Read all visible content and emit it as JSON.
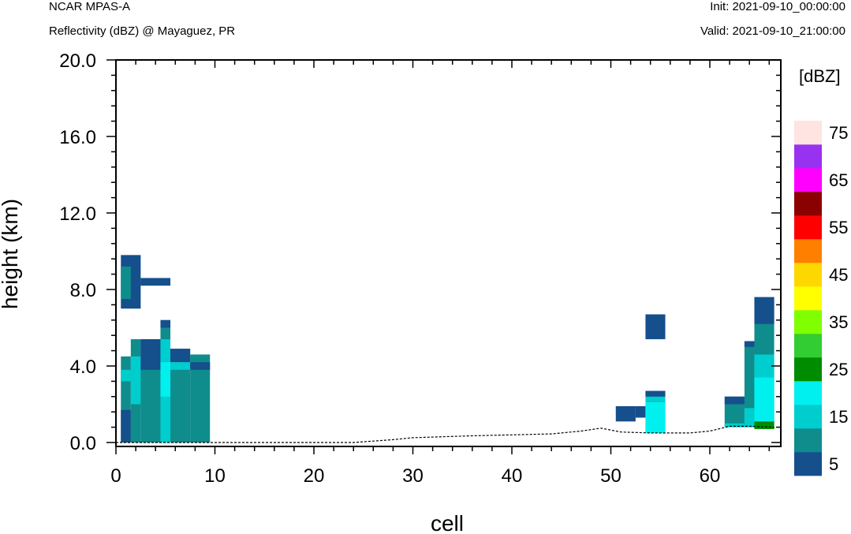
{
  "header": {
    "model": "NCAR MPAS-A",
    "field": "Reflectivity (dBZ) @ Mayaguez, PR",
    "init": "Init: 2021-09-10_00:00:00",
    "valid": "Valid: 2021-09-10_21:00:00"
  },
  "chart_data": {
    "type": "heatmap",
    "xlabel": "cell",
    "ylabel": "height (km)",
    "xlim": [
      0,
      66.5
    ],
    "ylim": [
      -0.2,
      20
    ],
    "x_ticks": [
      "0",
      "10",
      "20",
      "30",
      "40",
      "50",
      "60"
    ],
    "x_tick_values": [
      0,
      10,
      20,
      30,
      40,
      50,
      60
    ],
    "y_ticks": [
      "0.0",
      "4.0",
      "8.0",
      "12.0",
      "16.0",
      "20.0"
    ],
    "y_tick_values": [
      0,
      4,
      8,
      12,
      16,
      20
    ],
    "colorbar": {
      "title": "[dBZ]",
      "labels": [
        "5",
        "15",
        "25",
        "35",
        "45",
        "55",
        "65",
        "75"
      ],
      "label_values": [
        5,
        15,
        25,
        35,
        45,
        55,
        65,
        75
      ],
      "levels": [
        {
          "value": 5,
          "color": "#154f8c"
        },
        {
          "value": 10,
          "color": "#0f8c8c"
        },
        {
          "value": 15,
          "color": "#00cdcd"
        },
        {
          "value": 20,
          "color": "#00f0f0"
        },
        {
          "value": 25,
          "color": "#008c00"
        },
        {
          "value": 30,
          "color": "#32cd32"
        },
        {
          "value": 35,
          "color": "#80ff00"
        },
        {
          "value": 40,
          "color": "#ffff00"
        },
        {
          "value": 45,
          "color": "#ffd700"
        },
        {
          "value": 50,
          "color": "#ff7f00"
        },
        {
          "value": 55,
          "color": "#ff0000"
        },
        {
          "value": 60,
          "color": "#8b0000"
        },
        {
          "value": 65,
          "color": "#ff00ff"
        },
        {
          "value": 70,
          "color": "#9932f0"
        },
        {
          "value": 75,
          "color": "#ffe4e1"
        }
      ]
    },
    "cells": [
      {
        "x0": 0.5,
        "x1": 2.5,
        "y0": 7.0,
        "y1": 9.8,
        "dbz": 5
      },
      {
        "x0": 0.5,
        "x1": 1.5,
        "y0": 7.5,
        "y1": 9.2,
        "dbz": 10
      },
      {
        "x0": 2.5,
        "x1": 5.5,
        "y0": 8.2,
        "y1": 8.6,
        "dbz": 5
      },
      {
        "x0": 0.5,
        "x1": 1.5,
        "y0": 0.0,
        "y1": 4.5,
        "dbz": 10
      },
      {
        "x0": 0.5,
        "x1": 1.5,
        "y0": 3.2,
        "y1": 3.8,
        "dbz": 15
      },
      {
        "x0": 0.5,
        "x1": 1.5,
        "y0": 0.0,
        "y1": 1.7,
        "dbz": 5
      },
      {
        "x0": 1.5,
        "x1": 2.5,
        "y0": 0.0,
        "y1": 5.4,
        "dbz": 10
      },
      {
        "x0": 1.5,
        "x1": 2.5,
        "y0": 2.0,
        "y1": 4.5,
        "dbz": 15
      },
      {
        "x0": 2.5,
        "x1": 4.5,
        "y0": 0.0,
        "y1": 5.4,
        "dbz": 10
      },
      {
        "x0": 2.5,
        "x1": 4.5,
        "y0": 3.8,
        "y1": 5.4,
        "dbz": 5
      },
      {
        "x0": 4.5,
        "x1": 5.5,
        "y0": 0.0,
        "y1": 6.4,
        "dbz": 10
      },
      {
        "x0": 4.5,
        "x1": 5.5,
        "y0": 0.0,
        "y1": 5.4,
        "dbz": 15
      },
      {
        "x0": 4.5,
        "x1": 5.5,
        "y0": 2.4,
        "y1": 4.2,
        "dbz": 20
      },
      {
        "x0": 4.5,
        "x1": 5.5,
        "y0": 6.0,
        "y1": 6.4,
        "dbz": 5
      },
      {
        "x0": 5.5,
        "x1": 7.5,
        "y0": 0.0,
        "y1": 4.9,
        "dbz": 10
      },
      {
        "x0": 5.5,
        "x1": 7.5,
        "y0": 4.2,
        "y1": 4.9,
        "dbz": 5
      },
      {
        "x0": 5.5,
        "x1": 7.5,
        "y0": 3.8,
        "y1": 4.2,
        "dbz": 15
      },
      {
        "x0": 7.5,
        "x1": 9.5,
        "y0": 0.0,
        "y1": 4.6,
        "dbz": 10
      },
      {
        "x0": 7.5,
        "x1": 9.5,
        "y0": 3.8,
        "y1": 4.2,
        "dbz": 5
      },
      {
        "x0": 50.5,
        "x1": 52.5,
        "y0": 1.1,
        "y1": 1.9,
        "dbz": 5
      },
      {
        "x0": 52.5,
        "x1": 53.5,
        "y0": 1.3,
        "y1": 1.9,
        "dbz": 5
      },
      {
        "x0": 53.5,
        "x1": 55.5,
        "y0": 5.4,
        "y1": 6.7,
        "dbz": 5
      },
      {
        "x0": 53.5,
        "x1": 55.5,
        "y0": 0.5,
        "y1": 2.6,
        "dbz": 15
      },
      {
        "x0": 53.5,
        "x1": 55.5,
        "y0": 0.5,
        "y1": 2.1,
        "dbz": 20
      },
      {
        "x0": 53.5,
        "x1": 55.5,
        "y0": 2.4,
        "y1": 2.7,
        "dbz": 5
      },
      {
        "x0": 61.5,
        "x1": 63.5,
        "y0": 0.8,
        "y1": 2.4,
        "dbz": 10
      },
      {
        "x0": 61.5,
        "x1": 63.5,
        "y0": 2.0,
        "y1": 2.4,
        "dbz": 5
      },
      {
        "x0": 61.5,
        "x1": 63.5,
        "y0": 0.8,
        "y1": 1.0,
        "dbz": 15
      },
      {
        "x0": 63.5,
        "x1": 64.5,
        "y0": 0.8,
        "y1": 5.3,
        "dbz": 10
      },
      {
        "x0": 63.5,
        "x1": 64.5,
        "y0": 5.0,
        "y1": 5.3,
        "dbz": 5
      },
      {
        "x0": 63.5,
        "x1": 64.5,
        "y0": 0.8,
        "y1": 1.8,
        "dbz": 15
      },
      {
        "x0": 64.5,
        "x1": 66.5,
        "y0": 0.7,
        "y1": 7.6,
        "dbz": 10
      },
      {
        "x0": 64.5,
        "x1": 66.5,
        "y0": 6.2,
        "y1": 7.6,
        "dbz": 5
      },
      {
        "x0": 64.5,
        "x1": 66.5,
        "y0": 1.0,
        "y1": 4.6,
        "dbz": 15
      },
      {
        "x0": 64.5,
        "x1": 66.5,
        "y0": 1.1,
        "y1": 3.4,
        "dbz": 20
      },
      {
        "x0": 64.5,
        "x1": 66.5,
        "y0": 0.7,
        "y1": 1.1,
        "dbz": 25
      }
    ],
    "terrain": {
      "x": [
        0,
        10,
        20,
        24,
        28,
        30,
        33,
        36,
        40,
        44,
        47,
        49,
        51,
        54,
        58,
        60,
        62,
        64,
        66.5
      ],
      "y": [
        0.0,
        0.0,
        0.0,
        0.0,
        0.15,
        0.25,
        0.3,
        0.35,
        0.4,
        0.45,
        0.6,
        0.75,
        0.55,
        0.5,
        0.5,
        0.6,
        0.85,
        0.85,
        0.8
      ]
    }
  }
}
